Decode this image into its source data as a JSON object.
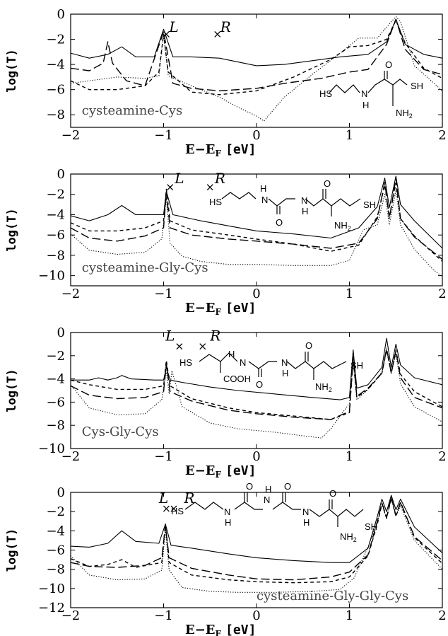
{
  "chart_data": [
    {
      "type": "line",
      "ylabel": "log(T)",
      "xlabel": "E−E",
      "xlabel_sub": "F",
      "xlabel_unit": "[eV]",
      "xlim": [
        -2,
        2
      ],
      "ylim": [
        -9,
        0
      ],
      "xticks": [
        "−2",
        "−1",
        "0",
        "1",
        "2"
      ],
      "yticks": [
        "0",
        "−2",
        "−4",
        "−6",
        "−8"
      ],
      "annotations": [
        {
          "text": "L",
          "x": -0.94,
          "y": -1.4
        },
        {
          "text": "R",
          "x": -0.39,
          "y": -1.4
        },
        {
          "text": "cysteamine-Cys",
          "x": -1.88,
          "y": -8.0
        }
      ],
      "markers": [
        {
          "x": -0.97,
          "y": -1.6
        },
        {
          "x": -0.42,
          "y": -1.6
        }
      ],
      "molecule_labels": [
        "HS",
        "N",
        "H",
        "O",
        "SH",
        "NH2"
      ],
      "series": [
        {
          "style": "solid",
          "x": [
            -2,
            -1.8,
            -1.6,
            -1.45,
            -1.3,
            -1.1,
            -1.0,
            -0.9,
            -0.7,
            -0.4,
            -0.2,
            0,
            0.3,
            0.6,
            0.9,
            1.2,
            1.4,
            1.5,
            1.6,
            1.8,
            2
          ],
          "y": [
            -3.1,
            -3.5,
            -3.2,
            -2.6,
            -3.4,
            -3.4,
            -1.2,
            -3.4,
            -3.4,
            -3.5,
            -3.8,
            -4.1,
            -4.0,
            -3.7,
            -3.4,
            -3.2,
            -2.2,
            -0.4,
            -2.4,
            -3.2,
            -3.5
          ]
        },
        {
          "style": "long-dash",
          "x": [
            -2,
            -1.8,
            -1.65,
            -1.6,
            -1.55,
            -1.4,
            -1.2,
            -1.0,
            -0.9,
            -0.7,
            -0.4,
            0,
            0.3,
            0.7,
            1.0,
            1.2,
            1.4,
            1.5,
            1.6,
            1.8,
            2
          ],
          "y": [
            -4.3,
            -4.5,
            -3.9,
            -2.2,
            -3.9,
            -5.3,
            -5.7,
            -1.4,
            -5.5,
            -5.9,
            -6.1,
            -5.9,
            -5.5,
            -5.1,
            -4.6,
            -4.4,
            -2.4,
            -0.4,
            -2.8,
            -4.4,
            -4.8
          ]
        },
        {
          "style": "short-dash",
          "x": [
            -2,
            -1.8,
            -1.5,
            -1.2,
            -1.05,
            -1.0,
            -0.95,
            -0.7,
            -0.4,
            0,
            0.4,
            0.8,
            1.0,
            1.2,
            1.4,
            1.5,
            1.6,
            1.8,
            2
          ],
          "y": [
            -5.3,
            -6.0,
            -6.0,
            -5.7,
            -4.6,
            -1.6,
            -4.6,
            -6.2,
            -6.4,
            -6.1,
            -5.0,
            -3.6,
            -2.6,
            -2.5,
            -2.0,
            -0.5,
            -2.3,
            -4.3,
            -5.1
          ]
        },
        {
          "style": "dotted",
          "x": [
            -2,
            -1.8,
            -1.5,
            -1.2,
            -1.05,
            -1.0,
            -0.95,
            -0.7,
            -0.4,
            -0.2,
            0,
            0.08,
            0.3,
            0.6,
            0.9,
            1.1,
            1.3,
            1.45,
            1.5,
            1.55,
            1.7,
            2
          ],
          "y": [
            -5.5,
            -5.3,
            -5.0,
            -5.1,
            -4.9,
            -1.6,
            -4.9,
            -5.7,
            -6.6,
            -7.4,
            -8.1,
            -8.5,
            -6.6,
            -4.8,
            -3.1,
            -1.9,
            -1.9,
            -0.6,
            -0.2,
            -0.6,
            -4.1,
            -6.1
          ]
        }
      ]
    },
    {
      "type": "line",
      "ylabel": "log(T)",
      "xlabel": "E−E",
      "xlabel_sub": "F",
      "xlabel_unit": "[eV]",
      "xlim": [
        -2,
        2
      ],
      "ylim": [
        -11,
        0
      ],
      "xticks": [
        "−2",
        "−1",
        "0",
        "1",
        "2"
      ],
      "yticks": [
        "0",
        "−2",
        "−4",
        "−6",
        "−8",
        "−10"
      ],
      "annotations": [
        {
          "text": "L",
          "x": -0.88,
          "y": -0.9
        },
        {
          "text": "R",
          "x": -0.45,
          "y": -0.9
        },
        {
          "text": "cysteamine-Gly-Cys",
          "x": -1.88,
          "y": -9.6
        }
      ],
      "markers": [
        {
          "x": -0.93,
          "y": -1.3
        },
        {
          "x": -0.5,
          "y": -1.3
        }
      ],
      "molecule_labels": [
        "HS",
        "H",
        "N",
        "O",
        "N",
        "H",
        "O",
        "SH",
        "NH2"
      ],
      "series": [
        {
          "style": "solid",
          "x": [
            -2,
            -1.8,
            -1.6,
            -1.45,
            -1.3,
            -1.0,
            -0.97,
            -0.9,
            -0.6,
            -0.3,
            0,
            0.4,
            0.8,
            1.1,
            1.3,
            1.38,
            1.43,
            1.5,
            1.55,
            1.7,
            2
          ],
          "y": [
            -4.1,
            -4.6,
            -4.0,
            -3.1,
            -4.0,
            -4.0,
            -1.7,
            -4.0,
            -4.6,
            -5.1,
            -5.6,
            -5.9,
            -6.3,
            -5.3,
            -3.2,
            -0.4,
            -3.3,
            -0.2,
            -3.0,
            -4.6,
            -7.3
          ]
        },
        {
          "style": "long-dash",
          "x": [
            -2,
            -1.8,
            -1.5,
            -1.2,
            -1.0,
            -0.97,
            -0.93,
            -0.7,
            -0.3,
            0,
            0.4,
            0.8,
            1.1,
            1.3,
            1.38,
            1.43,
            1.5,
            1.55,
            1.7,
            2
          ],
          "y": [
            -5.3,
            -6.3,
            -6.6,
            -6.1,
            -5.3,
            -1.8,
            -5.3,
            -6.0,
            -6.4,
            -6.6,
            -6.9,
            -7.3,
            -6.8,
            -4.4,
            -0.8,
            -4.4,
            -0.4,
            -4.4,
            -6.2,
            -8.4
          ]
        },
        {
          "style": "short-dash",
          "x": [
            -2,
            -1.8,
            -1.5,
            -1.2,
            -1.0,
            -0.97,
            -0.93,
            -0.7,
            -0.3,
            0,
            0.4,
            0.8,
            1.1,
            1.3,
            1.38,
            1.43,
            1.5,
            1.55,
            1.7,
            2
          ],
          "y": [
            -4.8,
            -5.6,
            -5.6,
            -5.3,
            -4.6,
            -1.5,
            -4.6,
            -5.5,
            -6.0,
            -6.4,
            -6.9,
            -7.6,
            -7.0,
            -4.2,
            -1.1,
            -4.2,
            -0.9,
            -4.4,
            -6.1,
            -8.6
          ]
        },
        {
          "style": "dotted",
          "x": [
            -2,
            -1.8,
            -1.5,
            -1.2,
            -1.02,
            -0.97,
            -0.93,
            -0.8,
            -0.6,
            -0.3,
            0,
            0.4,
            0.8,
            1.0,
            1.15,
            1.3,
            1.38,
            1.43,
            1.5,
            1.55,
            1.7,
            1.9,
            2
          ],
          "y": [
            -5.9,
            -7.5,
            -7.9,
            -7.7,
            -6.4,
            -2.4,
            -6.8,
            -8.1,
            -8.6,
            -8.9,
            -8.9,
            -9.0,
            -9.0,
            -8.5,
            -5.5,
            -5.0,
            -2.0,
            -5.0,
            -1.6,
            -5.0,
            -7.4,
            -9.4,
            -10.1
          ]
        }
      ]
    },
    {
      "type": "line",
      "ylabel": "log(T)",
      "xlabel": "E−E",
      "xlabel_sub": "F",
      "xlabel_unit": "[eV]",
      "xlim": [
        -2,
        2
      ],
      "ylim": [
        -10,
        0
      ],
      "xticks": [
        "−2",
        "−1",
        "0",
        "1",
        "2"
      ],
      "yticks": [
        "0",
        "−2",
        "−4",
        "−6",
        "−8",
        "−10"
      ],
      "annotations": [
        {
          "text": "L",
          "x": -0.98,
          "y": -0.7
        },
        {
          "text": "R",
          "x": -0.5,
          "y": -0.7
        },
        {
          "text": "Cys-Gly-Cys",
          "x": -1.88,
          "y": -8.9
        }
      ],
      "markers": [
        {
          "x": -0.83,
          "y": -1.2
        },
        {
          "x": -0.58,
          "y": -1.2
        }
      ],
      "molecule_labels": [
        "HS",
        "H",
        "N",
        "COOH",
        "O",
        "N",
        "H",
        "O",
        "SH",
        "NH2"
      ],
      "series": [
        {
          "style": "solid",
          "x": [
            -2,
            -1.8,
            -1.7,
            -1.6,
            -1.5,
            -1.45,
            -1.35,
            -1.1,
            -1.0,
            -0.97,
            -0.93,
            -0.8,
            -0.5,
            -0.2,
            0.2,
            0.6,
            0.9,
            1.0,
            1.04,
            1.08,
            1.2,
            1.35,
            1.4,
            1.45,
            1.5,
            1.55,
            1.7,
            2
          ],
          "y": [
            -4.1,
            -4.1,
            -3.9,
            -4.1,
            -3.9,
            -3.7,
            -4.0,
            -4.1,
            -4.1,
            -3.0,
            -4.1,
            -4.3,
            -4.7,
            -5.0,
            -5.3,
            -5.6,
            -5.8,
            -5.6,
            -1.5,
            -4.8,
            -4.5,
            -3.0,
            -0.5,
            -3.0,
            -1.0,
            -2.8,
            -3.9,
            -4.5
          ]
        },
        {
          "style": "long-dash",
          "x": [
            -2,
            -1.8,
            -1.5,
            -1.2,
            -1.0,
            -0.97,
            -0.93,
            -0.7,
            -0.3,
            0,
            0.4,
            0.8,
            1.0,
            1.04,
            1.08,
            1.2,
            1.35,
            1.4,
            1.45,
            1.5,
            1.55,
            1.7,
            2
          ],
          "y": [
            -4.6,
            -5.4,
            -5.7,
            -5.6,
            -5.1,
            -2.7,
            -5.1,
            -5.9,
            -6.7,
            -7.0,
            -7.3,
            -7.5,
            -6.8,
            -2.1,
            -5.5,
            -4.8,
            -3.5,
            -1.4,
            -3.5,
            -1.6,
            -3.9,
            -5.6,
            -6.5
          ]
        },
        {
          "style": "short-dash",
          "x": [
            -2,
            -1.8,
            -1.5,
            -1.2,
            -1.0,
            -0.97,
            -0.93,
            -0.7,
            -0.3,
            0,
            0.4,
            0.8,
            1.0,
            1.04,
            1.08,
            1.2,
            1.35,
            1.4,
            1.45,
            1.5,
            1.55,
            1.7,
            2
          ],
          "y": [
            -4.1,
            -4.5,
            -4.9,
            -4.9,
            -4.6,
            -2.4,
            -4.6,
            -5.7,
            -6.5,
            -6.9,
            -7.2,
            -7.5,
            -6.9,
            -2.3,
            -5.6,
            -4.9,
            -3.5,
            -1.5,
            -3.5,
            -1.5,
            -3.6,
            -5.1,
            -6.4
          ]
        },
        {
          "style": "dotted",
          "x": [
            -2,
            -1.8,
            -1.5,
            -1.2,
            -1.02,
            -0.97,
            -0.94,
            -0.91,
            -0.8,
            -0.5,
            -0.2,
            0.2,
            0.5,
            0.7,
            0.8,
            1.0,
            1.04,
            1.08,
            1.2,
            1.35,
            1.4,
            1.45,
            1.5,
            1.55,
            1.7,
            2
          ],
          "y": [
            -4.5,
            -6.5,
            -7.1,
            -7.0,
            -5.8,
            -3.3,
            -5.3,
            -3.3,
            -6.4,
            -7.8,
            -8.3,
            -8.6,
            -8.9,
            -9.1,
            -8.3,
            -6.1,
            -2.4,
            -5.8,
            -4.9,
            -3.4,
            -1.3,
            -3.4,
            -1.9,
            -4.4,
            -6.4,
            -7.7
          ]
        }
      ]
    },
    {
      "type": "line",
      "ylabel": "log(T)",
      "xlabel": "E−E",
      "xlabel_sub": "F",
      "xlabel_unit": "[eV]",
      "xlim": [
        -2,
        2
      ],
      "ylim": [
        -12,
        0
      ],
      "xticks": [
        "−2",
        "−1",
        "0",
        "1",
        "2"
      ],
      "yticks": [
        "0",
        "−2",
        "−4",
        "−6",
        "−8",
        "−10",
        "−12"
      ],
      "annotations": [
        {
          "text": "L",
          "x": -1.05,
          "y": -1.1
        },
        {
          "text": "R",
          "x": -0.78,
          "y": -1.1
        },
        {
          "text": "cysteamine-Gly-Gly-Cys",
          "x": 0.0,
          "y": -11.2
        }
      ],
      "markers": [
        {
          "x": -0.97,
          "y": -1.7
        },
        {
          "x": -0.89,
          "y": -1.7
        }
      ],
      "molecule_labels": [
        "HS",
        "N",
        "H",
        "O",
        "N",
        "H",
        "O",
        "N",
        "H",
        "O",
        "SH",
        "NH2"
      ],
      "series": [
        {
          "style": "solid",
          "x": [
            -2,
            -1.8,
            -1.6,
            -1.45,
            -1.3,
            -1.05,
            -0.98,
            -0.92,
            -0.7,
            -0.3,
            0,
            0.4,
            0.8,
            1.0,
            1.2,
            1.3,
            1.35,
            1.4,
            1.45,
            1.5,
            1.55,
            1.7,
            2
          ],
          "y": [
            -5.6,
            -5.7,
            -5.3,
            -4.0,
            -5.1,
            -5.3,
            -3.3,
            -5.5,
            -5.8,
            -6.4,
            -6.8,
            -7.1,
            -7.3,
            -7.3,
            -5.8,
            -2.5,
            -0.7,
            -2.0,
            -0.3,
            -1.8,
            -0.7,
            -3.6,
            -6.3
          ]
        },
        {
          "style": "long-dash",
          "x": [
            -2,
            -1.8,
            -1.5,
            -1.2,
            -1.02,
            -0.98,
            -0.94,
            -0.7,
            -0.3,
            0,
            0.4,
            0.8,
            1.0,
            1.2,
            1.3,
            1.35,
            1.4,
            1.45,
            1.5,
            1.55,
            1.7,
            2
          ],
          "y": [
            -7.3,
            -7.7,
            -7.8,
            -7.6,
            -6.8,
            -3.5,
            -6.8,
            -7.9,
            -8.6,
            -9.0,
            -9.1,
            -8.8,
            -8.3,
            -6.5,
            -3.0,
            -1.1,
            -2.6,
            -0.5,
            -2.4,
            -1.0,
            -4.6,
            -7.1
          ]
        },
        {
          "style": "short-dash",
          "x": [
            -2,
            -1.8,
            -1.6,
            -1.45,
            -1.3,
            -1.02,
            -0.98,
            -0.94,
            -0.7,
            -0.3,
            0,
            0.4,
            0.8,
            1.0,
            1.2,
            1.3,
            1.35,
            1.4,
            1.45,
            1.5,
            1.55,
            1.7,
            2
          ],
          "y": [
            -6.9,
            -7.7,
            -7.5,
            -7.0,
            -7.8,
            -7.3,
            -3.3,
            -7.3,
            -8.6,
            -9.1,
            -9.3,
            -9.4,
            -9.3,
            -8.8,
            -6.6,
            -3.3,
            -1.2,
            -2.7,
            -0.6,
            -2.5,
            -1.1,
            -4.7,
            -7.4
          ]
        },
        {
          "style": "dotted",
          "x": [
            -2,
            -1.8,
            -1.5,
            -1.2,
            -1.02,
            -0.98,
            -0.94,
            -0.8,
            -0.5,
            -0.2,
            0.2,
            0.6,
            0.9,
            1.05,
            1.2,
            1.3,
            1.35,
            1.4,
            1.45,
            1.5,
            1.55,
            1.7,
            2
          ],
          "y": [
            -6.6,
            -8.6,
            -9.1,
            -9.0,
            -8.1,
            -3.8,
            -8.1,
            -9.9,
            -10.3,
            -10.4,
            -10.4,
            -10.3,
            -10.1,
            -8.9,
            -5.7,
            -3.1,
            -1.2,
            -2.7,
            -0.7,
            -2.4,
            -1.4,
            -5.0,
            -8.0
          ]
        }
      ]
    }
  ]
}
